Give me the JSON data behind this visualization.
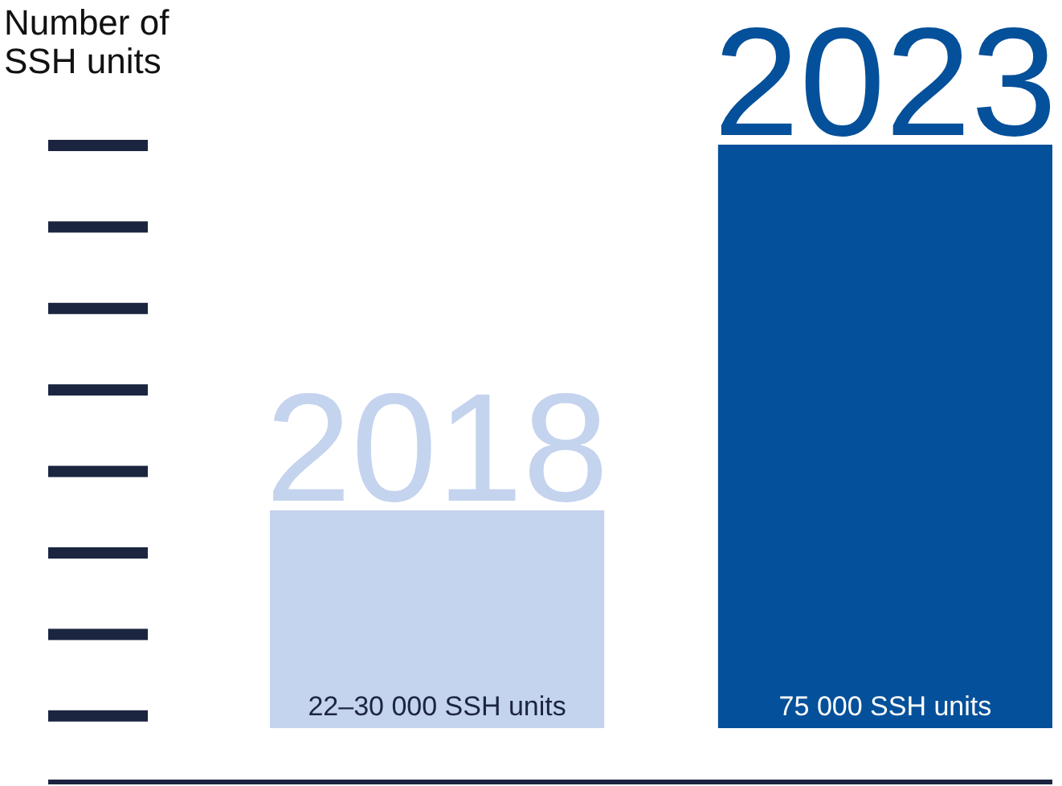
{
  "chart_data": {
    "type": "bar",
    "ylabel": "Number of SSH units",
    "categories": [
      "2018",
      "2023"
    ],
    "values": [
      28000,
      75000
    ],
    "colors": [
      "#c4d3ee",
      "#05509a"
    ],
    "value_labels": [
      "22–30 000 SSH units",
      "75 000 SSH units"
    ],
    "ylim": [
      0,
      75000
    ]
  }
}
